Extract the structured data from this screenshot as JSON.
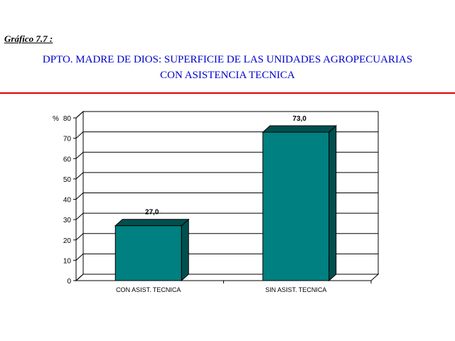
{
  "figure_label": "Gráfico 7.7 :",
  "title_line1": "DPTO. MADRE DE DIOS: SUPERFICIE DE LAS UNIDADES AGROPECUARIAS",
  "title_line2": "CON ASISTENCIA TECNICA",
  "colors": {
    "title": "#0000cc",
    "rule": "#dd0000",
    "bar_front": "#008080",
    "bar_side": "#005050"
  },
  "chart_data": {
    "type": "bar",
    "categories": [
      "CON ASIST. TECNICA",
      "SIN ASIST. TECNICA"
    ],
    "values": [
      27.0,
      73.0
    ],
    "data_labels": [
      "27,0",
      "73,0"
    ],
    "ylabel": "%",
    "ylim": [
      0,
      80
    ],
    "yticks": [
      0,
      10,
      20,
      30,
      40,
      50,
      60,
      70,
      80
    ],
    "grid": true,
    "legend": "none",
    "style": "3d"
  }
}
